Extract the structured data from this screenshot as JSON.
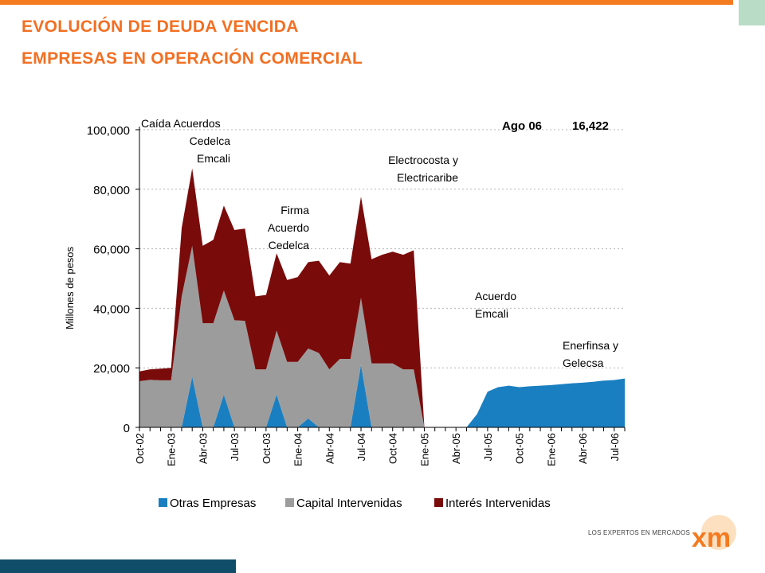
{
  "header": {
    "title_line1": "EVOLUCIÓN  DE  DEUDA  VENCIDA",
    "title_line2": "EMPRESAS  EN OPERACIÓN COMERCIAL"
  },
  "colors": {
    "accent_orange": "#f47a20",
    "title_orange": "#f26f22",
    "otras_empresas": "#1a7fc1",
    "capital_intervenidas": "#9c9c9c",
    "interes_intervenidas": "#7a0b0b",
    "bottom_bar": "#0f4d68",
    "corner_block": "#b9dcc6"
  },
  "logo": {
    "text": "LOS EXPERTOS EN MERCADOS",
    "mark": "xm"
  },
  "chart_data": {
    "type": "area",
    "stacked": true,
    "ylabel": "Millones de pesos",
    "ylim": [
      0,
      100000
    ],
    "yticks": [
      "0",
      "20,000",
      "40,000",
      "60,000",
      "80,000",
      "100,000"
    ],
    "ytick_values": [
      0,
      20000,
      40000,
      60000,
      80000,
      100000
    ],
    "grid": "horizontal dotted",
    "legend_position": "bottom",
    "xtick_labels": [
      "Oct-02",
      "Ene-03",
      "Abr-03",
      "Jul-03",
      "Oct-03",
      "Ene-04",
      "Abr-04",
      "Jul-04",
      "Oct-04",
      "Ene-05",
      "Abr-05",
      "Jul-05",
      "Oct-05",
      "Ene-06",
      "Abr-06",
      "Jul-06"
    ],
    "x": [
      "Oct-02",
      "Nov-02",
      "Dic-02",
      "Ene-03",
      "Feb-03",
      "Mar-03",
      "Abr-03",
      "May-03",
      "Jun-03",
      "Jul-03",
      "Ago-03",
      "Sep-03",
      "Oct-03",
      "Nov-03",
      "Dic-03",
      "Ene-04",
      "Feb-04",
      "Mar-04",
      "Abr-04",
      "May-04",
      "Jun-04",
      "Jul-04",
      "Ago-04",
      "Sep-04",
      "Oct-04",
      "Nov-04",
      "Dic-04",
      "Ene-05",
      "Feb-05",
      "Mar-05",
      "Abr-05",
      "May-05",
      "Jun-05",
      "Jul-05",
      "Ago-05",
      "Sep-05",
      "Oct-05",
      "Nov-05",
      "Dic-05",
      "Ene-06",
      "Feb-06",
      "Mar-06",
      "Abr-06",
      "May-06",
      "Jun-06",
      "Jul-06",
      "Ago-06"
    ],
    "series": [
      {
        "name": "Otras Empresas",
        "values": [
          0,
          0,
          0,
          0,
          0,
          17000,
          0,
          0,
          11000,
          0,
          0,
          0,
          0,
          11000,
          0,
          0,
          3000,
          0,
          0,
          0,
          0,
          21000,
          0,
          0,
          0,
          0,
          0,
          0,
          0,
          0,
          0,
          0,
          4500,
          12000,
          13500,
          14000,
          13500,
          13800,
          14000,
          14200,
          14500,
          14800,
          15000,
          15300,
          15700,
          15900,
          16422
        ]
      },
      {
        "name": "Capital Intervenidas",
        "values": [
          15500,
          16000,
          15800,
          15800,
          44000,
          44000,
          35000,
          35000,
          35000,
          36000,
          35800,
          19500,
          19500,
          21500,
          22000,
          22000,
          23500,
          25000,
          19500,
          23000,
          23000,
          22500,
          21500,
          21500,
          21500,
          19500,
          19500,
          0,
          0,
          0,
          0,
          0,
          0,
          0,
          0,
          0,
          0,
          0,
          0,
          0,
          0,
          0,
          0,
          0,
          0,
          0,
          0
        ]
      },
      {
        "name": "Interés Intervenidas",
        "values": [
          3300,
          3500,
          3900,
          4200,
          23000,
          26000,
          26000,
          28000,
          28500,
          30300,
          31000,
          24500,
          25000,
          26000,
          27500,
          28500,
          29000,
          31000,
          31500,
          32500,
          32000,
          34000,
          35000,
          36500,
          37500,
          38500,
          40000,
          0,
          0,
          0,
          0,
          0,
          0,
          0,
          0,
          0,
          0,
          0,
          0,
          0,
          0,
          0,
          0,
          0,
          0,
          0,
          0
        ]
      }
    ],
    "annotations": [
      {
        "lines": [
          "Caída Acuerdos",
          "Cedelca",
          "Emcali"
        ]
      },
      {
        "lines": [
          "Electrocosta y",
          "Electricaribe"
        ]
      },
      {
        "lines": [
          "Firma",
          "Acuerdo",
          "Cedelca"
        ]
      },
      {
        "lines": [
          "Acuerdo",
          "Emcali"
        ]
      },
      {
        "lines": [
          "Enerfinsa y",
          "Gelecsa"
        ]
      }
    ],
    "callout": {
      "label": "Ago  06",
      "value": "16,422"
    }
  }
}
